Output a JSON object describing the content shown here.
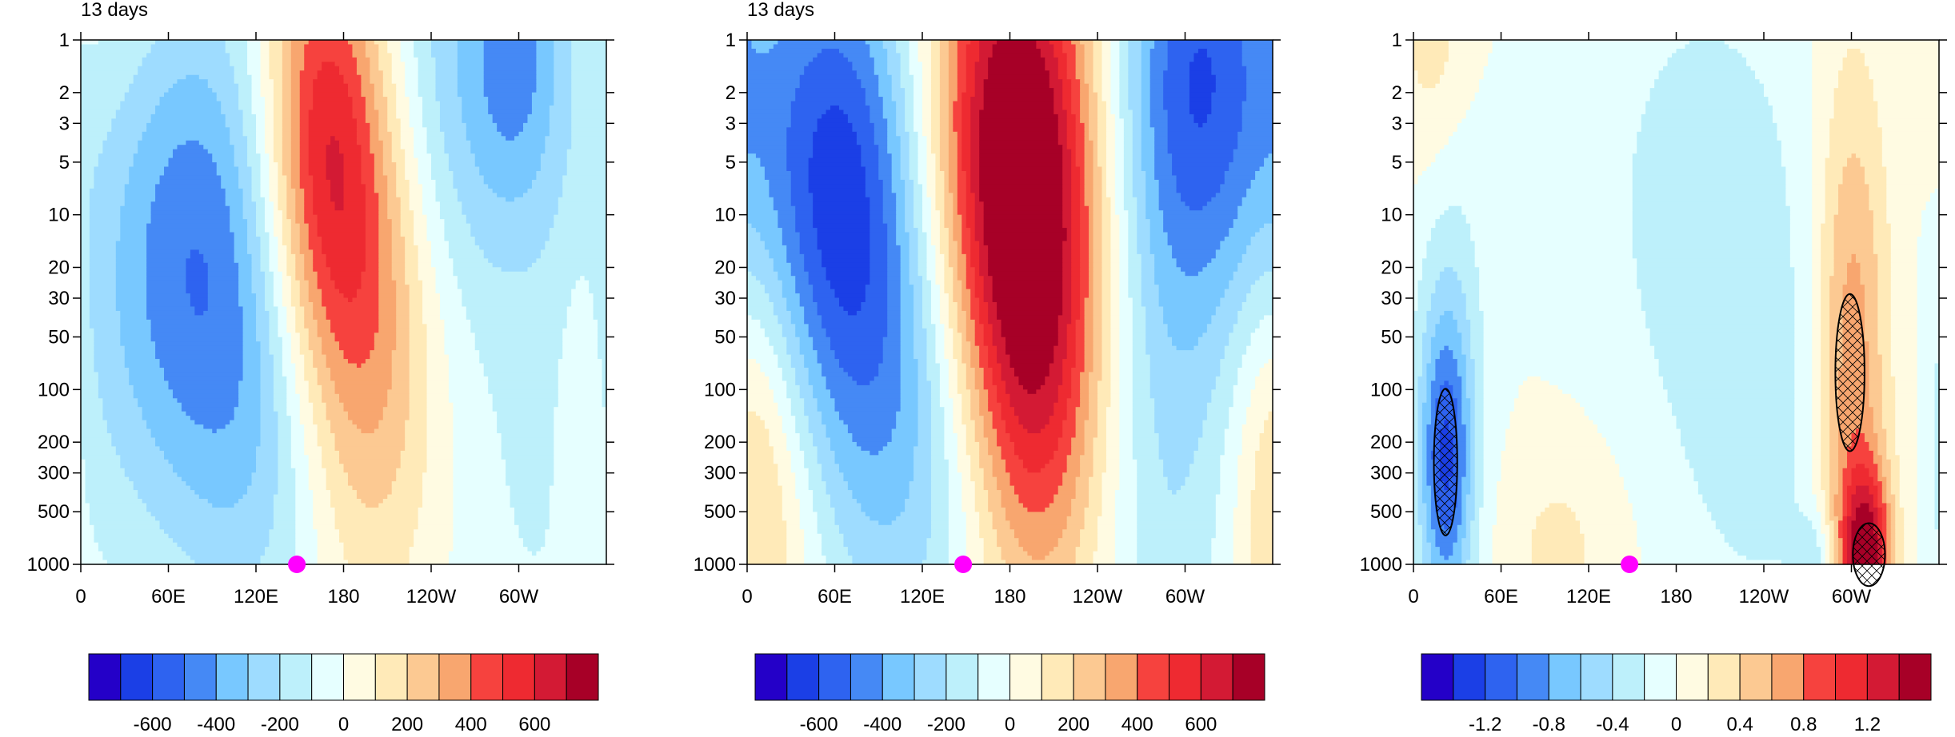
{
  "palette": [
    "#2400c8",
    "#1b3fe6",
    "#2e63f0",
    "#4589f5",
    "#78c8ff",
    "#9edcff",
    "#bdf0fb",
    "#e6ffff",
    "#fffbe2",
    "#ffeab8",
    "#fcc992",
    "#f8a66f",
    "#f6423e",
    "#ee2a31",
    "#d31a34",
    "#a70027"
  ],
  "chart_data": [
    {
      "type": "heatmap",
      "title": "13 days",
      "xticks": [
        "0",
        "60E",
        "120E",
        "180",
        "120W",
        "60W"
      ],
      "yticks": [
        "1",
        "2",
        "3",
        "5",
        "10",
        "20",
        "30",
        "50",
        "100",
        "200",
        "300",
        "500",
        "1000"
      ],
      "x_range": [
        0,
        360
      ],
      "y_range": [
        1,
        1000
      ],
      "y_scale": "log",
      "marker": {
        "x": 148,
        "y": 1000,
        "color": "#ff00ff"
      },
      "colorbar_labels": [
        "-600",
        "-400",
        "-200",
        "0",
        "200",
        "400",
        "600"
      ],
      "color_levels": [
        -700,
        -600,
        -500,
        -400,
        -300,
        -200,
        -100,
        0,
        100,
        200,
        300,
        400,
        500,
        600,
        700
      ],
      "features": [
        {
          "x": 20,
          "y": 1,
          "v": 150,
          "sx": 40,
          "sy": 1.2
        },
        {
          "x": 60,
          "y": 13,
          "v": -460,
          "sx": 48,
          "sy": 1.15
        },
        {
          "x": 120,
          "y": 90,
          "v": -250,
          "sx": 38,
          "sy": 1.15
        },
        {
          "x": 165,
          "y": 4,
          "v": 600,
          "sx": 30,
          "sy": 0.95
        },
        {
          "x": 200,
          "y": 40,
          "v": 330,
          "sx": 32,
          "sy": 1.1
        },
        {
          "x": 275,
          "y": 1.5,
          "v": -330,
          "sx": 55,
          "sy": 1.0
        },
        {
          "x": 300,
          "y": 1,
          "v": -180,
          "sx": 20,
          "sy": 0.6
        },
        {
          "x": 310,
          "y": 550,
          "v": -90,
          "sx": 40,
          "sy": 0.9
        },
        {
          "x": 345,
          "y": 150,
          "v": 120,
          "sx": 12,
          "sy": 0.8
        }
      ]
    },
    {
      "type": "heatmap",
      "title": "13 days",
      "xticks": [
        "0",
        "60E",
        "120E",
        "180",
        "120W",
        "60W"
      ],
      "yticks": [
        "1",
        "2",
        "3",
        "5",
        "10",
        "20",
        "30",
        "50",
        "100",
        "200",
        "300",
        "500",
        "1000"
      ],
      "x_range": [
        0,
        360
      ],
      "y_range": [
        1,
        1000
      ],
      "y_scale": "log",
      "marker": {
        "x": 148,
        "y": 1000,
        "color": "#ff00ff"
      },
      "colorbar_labels": [
        "-600",
        "-400",
        "-200",
        "0",
        "200",
        "400",
        "600"
      ],
      "color_levels": [
        -700,
        -600,
        -500,
        -400,
        -300,
        -200,
        -100,
        0,
        100,
        200,
        300,
        400,
        500,
        600,
        700
      ],
      "features": [
        {
          "x": 60,
          "y": 7,
          "v": -620,
          "sx": 40,
          "sy": 1.1
        },
        {
          "x": 110,
          "y": 150,
          "v": -280,
          "sx": 38,
          "sy": 1.1
        },
        {
          "x": 180,
          "y": 4,
          "v": 780,
          "sx": 40,
          "sy": 1.1
        },
        {
          "x": 200,
          "y": 70,
          "v": 420,
          "sx": 30,
          "sy": 1.1
        },
        {
          "x": 310,
          "y": 1.5,
          "v": -570,
          "sx": 40,
          "sy": 1.0
        },
        {
          "x": 290,
          "y": 250,
          "v": -180,
          "sx": 30,
          "sy": 1.3
        },
        {
          "x": 20,
          "y": 300,
          "v": 170,
          "sx": 25,
          "sy": 0.9
        },
        {
          "x": 360,
          "y": 250,
          "v": 150,
          "sx": 20,
          "sy": 0.9
        }
      ]
    },
    {
      "type": "heatmap",
      "title": "",
      "xticks": [
        "0",
        "60E",
        "120E",
        "180",
        "120W",
        "60W"
      ],
      "yticks": [
        "1",
        "2",
        "3",
        "5",
        "10",
        "20",
        "30",
        "50",
        "100",
        "200",
        "300",
        "500",
        "1000"
      ],
      "x_range": [
        0,
        360
      ],
      "y_range": [
        1,
        1000
      ],
      "y_scale": "log",
      "marker": {
        "x": 148,
        "y": 1000,
        "color": "#ff00ff"
      },
      "colorbar_labels": [
        "-1.2",
        "-0.8",
        "-0.4",
        "0",
        "0.4",
        "0.8",
        "1.2"
      ],
      "color_levels": [
        -1.4,
        -1.2,
        -1.0,
        -0.8,
        -0.6,
        -0.4,
        -0.2,
        0,
        0.2,
        0.4,
        0.6,
        0.8,
        1.0,
        1.2,
        1.4
      ],
      "features": [
        {
          "x": 22,
          "y": 260,
          "v": -0.95,
          "sx": 12,
          "sy": 0.55
        },
        {
          "x": 25,
          "y": 80,
          "v": -0.35,
          "sx": 18,
          "sy": 1.2
        },
        {
          "x": 300,
          "y": 80,
          "v": 0.8,
          "sx": 18,
          "sy": 1.2
        },
        {
          "x": 310,
          "y": 900,
          "v": 1.3,
          "sx": 12,
          "sy": 0.35
        },
        {
          "x": 200,
          "y": 8,
          "v": -0.3,
          "sx": 55,
          "sy": 1.0
        },
        {
          "x": 100,
          "y": 800,
          "v": 0.25,
          "sx": 30,
          "sy": 0.45
        },
        {
          "x": 15,
          "y": 1,
          "v": 0.35,
          "sx": 18,
          "sy": 0.6
        },
        {
          "x": 240,
          "y": 200,
          "v": -0.25,
          "sx": 40,
          "sy": 0.8
        },
        {
          "x": 275,
          "y": 950,
          "v": -0.4,
          "sx": 10,
          "sy": 0.2
        }
      ],
      "hatched_regions": [
        {
          "x": 22,
          "y": 260,
          "rx": 8,
          "ry_dec": 0.42
        },
        {
          "x": 299,
          "y": 80,
          "rx": 10,
          "ry_dec": 0.45
        },
        {
          "x": 312,
          "y": 880,
          "rx": 11,
          "ry_dec": 0.18
        }
      ]
    }
  ]
}
